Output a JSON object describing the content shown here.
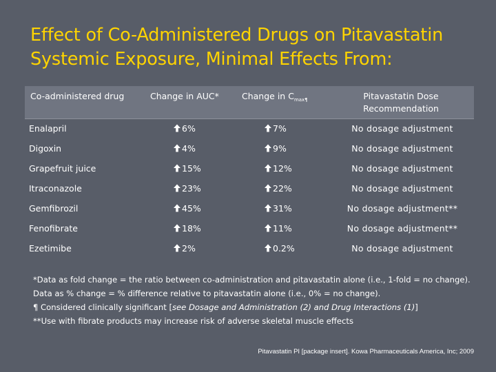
{
  "slide": {
    "title_line1": "Effect of Co-Administered Drugs on Pitavastatin",
    "title_line2": "Systemic Exposure, Minimal Effects From:",
    "title_color": "#ffd400",
    "background_color": "#585d68"
  },
  "table": {
    "headers": {
      "drug": "Co-administered drug",
      "auc": "Change in AUC*",
      "cmax_prefix": "Change in C",
      "cmax_sub": "max¶",
      "recommendation": "Pitavastatin Dose Recommendation"
    },
    "rows": [
      {
        "drug": "Enalapril",
        "auc": "6%",
        "cmax": "7%",
        "recommendation": "No dosage adjustment"
      },
      {
        "drug": "Digoxin",
        "auc": "4%",
        "cmax": "9%",
        "recommendation": "No dosage adjustment"
      },
      {
        "drug": "Grapefruit juice",
        "auc": "15%",
        "cmax": "12%",
        "recommendation": "No dosage adjustment"
      },
      {
        "drug": "Itraconazole",
        "auc": "23%",
        "cmax": "22%",
        "recommendation": "No dosage adjustment"
      },
      {
        "drug": "Gemfibrozil",
        "auc": "45%",
        "cmax": "31%",
        "recommendation": "No dosage adjustment**"
      },
      {
        "drug": "Fenofibrate",
        "auc": "18%",
        "cmax": "11%",
        "recommendation": "No dosage adjustment**"
      },
      {
        "drug": "Ezetimibe",
        "auc": "2%",
        "cmax": "0.2%",
        "recommendation": "No dosage adjustment"
      }
    ],
    "arrow_icon": "arrow-up-icon"
  },
  "footnotes": {
    "line1": "*Data as fold change = the ratio between co-administration and pitavastatin alone (i.e., 1-fold = no change). Data as % change = % difference relative to pitavastatin alone (i.e., 0% = no change).",
    "line3_prefix": "¶ Considered clinically significant [",
    "line3_italic": "see Dosage and Administration (2) and Drug Interactions (1)",
    "line3_suffix": "]",
    "line4": "**Use with fibrate products may increase risk of adverse skeletal muscle effects"
  },
  "citation": "Pitavastatin PI [package insert]. Kowa Pharmaceuticals America, Inc; 2009"
}
